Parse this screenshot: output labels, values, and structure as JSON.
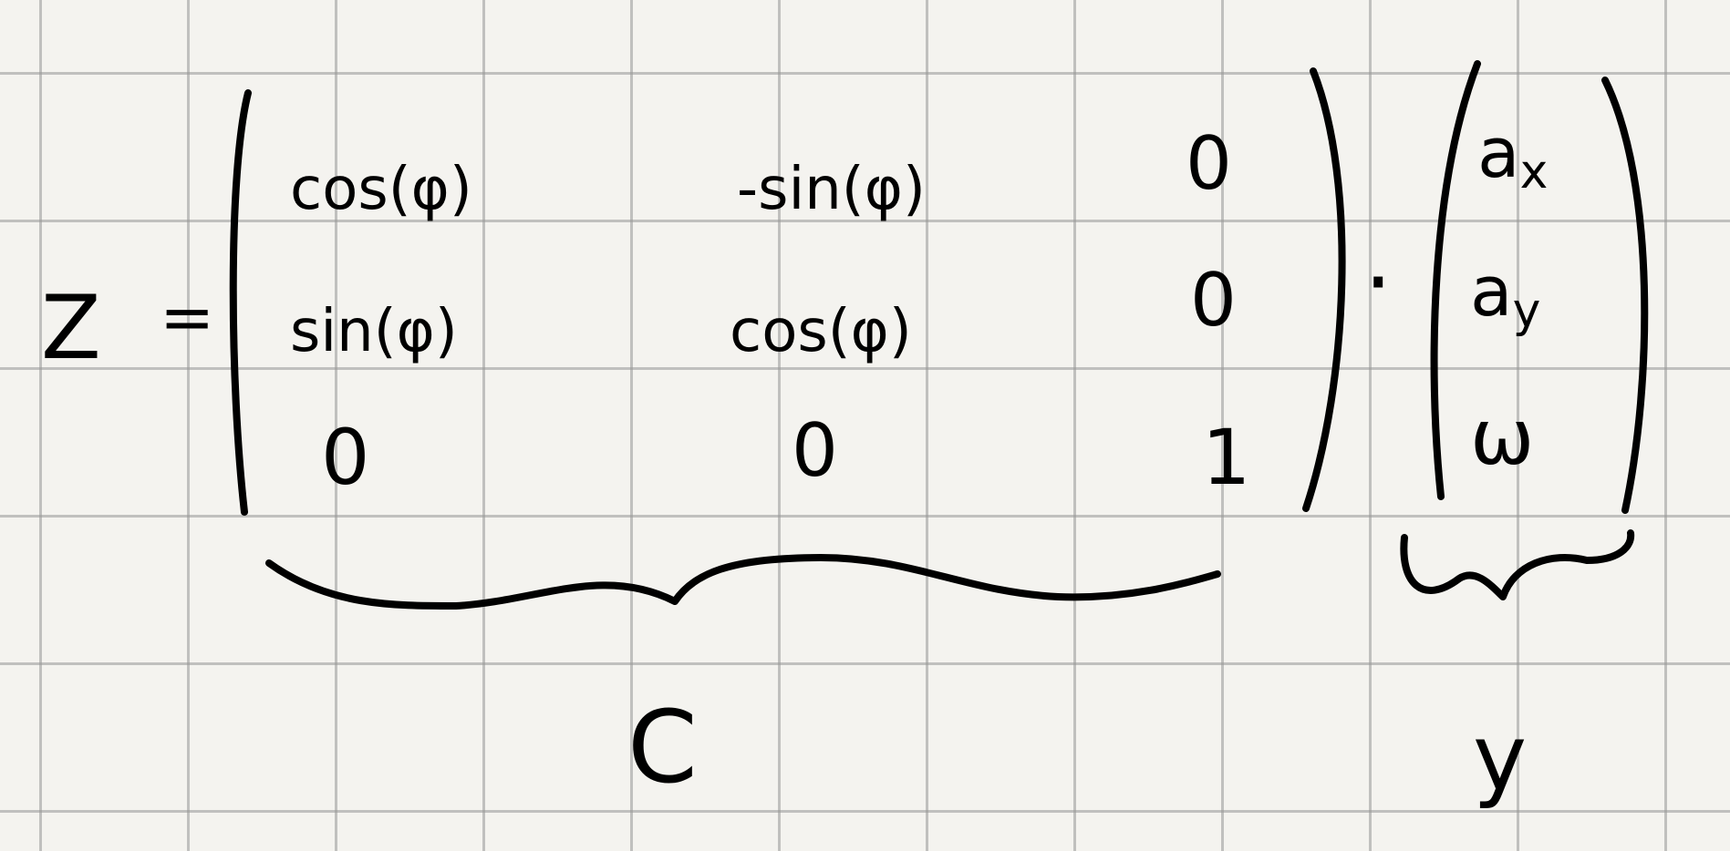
{
  "equation": {
    "lhs": "Z",
    "equals": "=",
    "matrix_c": [
      [
        "cos(φ)",
        "-sin(φ)",
        "0"
      ],
      [
        "sin(φ)",
        "cos(φ)",
        "0"
      ],
      [
        "0",
        "0",
        "1"
      ]
    ],
    "dot": "·",
    "vector_y": [
      {
        "base": "a",
        "sub": "x"
      },
      {
        "base": "a",
        "sub": "y"
      },
      {
        "base": "ω",
        "sub": ""
      }
    ],
    "brace_c_label": "C",
    "brace_y_label": "y"
  },
  "colors": {
    "ink": "#000000",
    "paper": "#f4f3ef",
    "grid": "#969696"
  }
}
